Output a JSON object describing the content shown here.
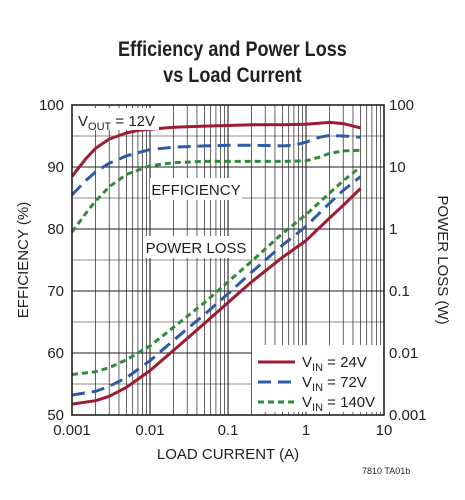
{
  "chart_data": {
    "type": "line",
    "title": "Efficiency and Power Loss",
    "subtitle": "vs Load Current",
    "xlabel": "LOAD CURRENT (A)",
    "ylabel_left": "EFFICIENCY (%)",
    "ylabel_right": "POWER LOSS (W)",
    "xscale": "log",
    "xlim": [
      0.001,
      10
    ],
    "ylim_left": [
      50,
      100
    ],
    "ylim_right": [
      0.001,
      100
    ],
    "yscale_right": "log",
    "x_tick_labels": [
      "0.001",
      "0.01",
      "0.1",
      "1",
      "10"
    ],
    "y_left_tick_labels": [
      "50",
      "60",
      "70",
      "80",
      "90",
      "100"
    ],
    "y_right_tick_labels": [
      "0.001",
      "0.01",
      "0.1",
      "1",
      "10",
      "100"
    ],
    "grid": true,
    "legend_position": "bottom-right",
    "annotations": {
      "condition_main": "V",
      "condition_sub": "OUT",
      "condition_rest": " = 12V",
      "efficiency_label": "EFFICIENCY",
      "power_loss_label": "POWER LOSS"
    },
    "series": [
      {
        "name": "VIN = 24V",
        "name_main": "V",
        "name_sub": "IN",
        "name_rest": " = 24V",
        "color": "#9e1b32",
        "dash": "solid",
        "efficiency": {
          "x": [
            0.001,
            0.0015,
            0.002,
            0.003,
            0.005,
            0.007,
            0.01,
            0.02,
            0.05,
            0.1,
            0.2,
            0.5,
            1,
            2,
            3,
            5
          ],
          "y": [
            88.5,
            91.3,
            93,
            94.5,
            95.5,
            95.9,
            96.1,
            96.4,
            96.6,
            96.7,
            96.8,
            96.8,
            96.9,
            97.2,
            97,
            96.3
          ]
        },
        "power_loss": {
          "x": [
            0.001,
            0.002,
            0.003,
            0.005,
            0.01,
            0.02,
            0.05,
            0.1,
            0.2,
            0.5,
            1,
            2,
            3,
            5
          ],
          "y": [
            0.0015,
            0.0017,
            0.002,
            0.0028,
            0.0052,
            0.011,
            0.03,
            0.065,
            0.14,
            0.35,
            0.65,
            1.5,
            2.4,
            4.5
          ]
        }
      },
      {
        "name": "VIN = 72V",
        "name_main": "V",
        "name_sub": "IN",
        "name_rest": " = 72V",
        "color": "#2e5ba8",
        "dash": "long",
        "efficiency": {
          "x": [
            0.001,
            0.0015,
            0.002,
            0.003,
            0.005,
            0.01,
            0.02,
            0.05,
            0.1,
            0.2,
            0.5,
            0.7,
            1,
            1.5,
            2,
            3,
            5
          ],
          "y": [
            85.5,
            87.8,
            89.2,
            90.6,
            91.8,
            92.8,
            93.2,
            93.4,
            93.5,
            93.5,
            93.4,
            93.5,
            94,
            94.8,
            95.1,
            95,
            94.8
          ]
        },
        "power_loss": {
          "x": [
            0.001,
            0.002,
            0.003,
            0.005,
            0.01,
            0.02,
            0.05,
            0.1,
            0.2,
            0.5,
            1,
            2,
            3,
            5
          ],
          "y": [
            0.0021,
            0.0024,
            0.0029,
            0.004,
            0.0075,
            0.016,
            0.042,
            0.09,
            0.2,
            0.55,
            1.1,
            2.6,
            4.2,
            7
          ]
        }
      },
      {
        "name": "VIN = 140V",
        "name_main": "V",
        "name_sub": "IN",
        "name_rest": " = 140V",
        "color": "#2f8a3c",
        "dash": "short",
        "efficiency": {
          "x": [
            0.001,
            0.0015,
            0.002,
            0.003,
            0.005,
            0.01,
            0.02,
            0.05,
            0.1,
            0.2,
            0.5,
            1,
            1.5,
            2,
            3,
            5
          ],
          "y": [
            79.5,
            82.5,
            84.5,
            86.8,
            88.8,
            90.2,
            90.7,
            90.9,
            90.9,
            90.9,
            90.9,
            91,
            91.6,
            92.2,
            92.6,
            92.7
          ]
        },
        "power_loss": {
          "x": [
            0.001,
            0.002,
            0.003,
            0.005,
            0.01,
            0.02,
            0.05,
            0.1,
            0.2,
            0.5,
            1,
            2,
            3,
            5
          ],
          "y": [
            0.0045,
            0.005,
            0.0058,
            0.0078,
            0.013,
            0.026,
            0.065,
            0.14,
            0.3,
            0.85,
            1.7,
            3.8,
            6,
            10
          ]
        }
      }
    ]
  },
  "footnote": "7810 TA01b"
}
